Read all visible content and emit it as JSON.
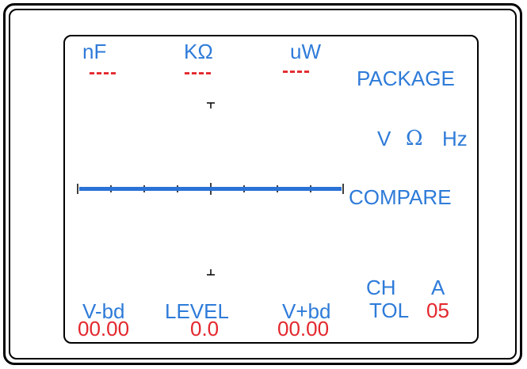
{
  "measure": {
    "units": [
      "nF",
      "KΩ",
      "uW"
    ],
    "readings": [
      "----",
      "----",
      "----"
    ]
  },
  "side_menu": {
    "package": "PACKAGE",
    "v": "V",
    "ohm": "Ω",
    "hz": "Hz",
    "compare": "COMPARE"
  },
  "bottom": {
    "vbd_minus_label": "V-bd",
    "level_label": "LEVEL",
    "vbd_plus_label": "V+bd",
    "vbd_minus_value": "00.00",
    "level_value": "0.0",
    "vbd_plus_value": "00.00"
  },
  "channel": {
    "ch_label": "CH",
    "ch_value": "A",
    "tol_label": "TOL",
    "tol_value": "05"
  },
  "colors": {
    "label_blue": "#2e7bd9",
    "value_red": "#e3272d",
    "trace_blue": "#2a72d6"
  }
}
